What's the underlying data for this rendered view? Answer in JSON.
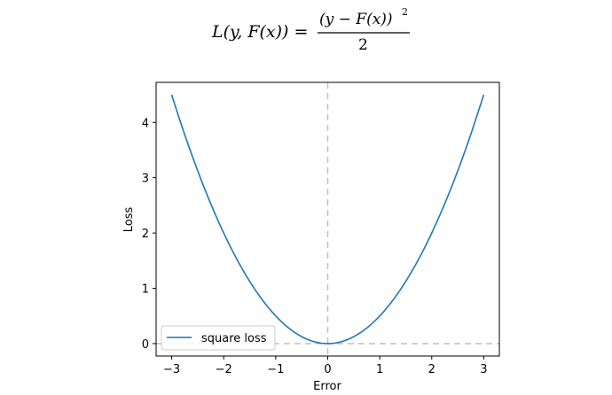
{
  "chart_data": {
    "type": "line",
    "title": {
      "lhs": "L(y, F(x)) =",
      "numerator": "(y − F(x))",
      "exponent": "2",
      "denominator": "2"
    },
    "xlabel": "Error",
    "ylabel": "Loss",
    "xlim": [
      -3.3,
      3.3
    ],
    "ylim": [
      -0.225,
      4.725
    ],
    "x_ticks": [
      -3,
      -2,
      -1,
      0,
      1,
      2,
      3
    ],
    "x_tick_labels": [
      "−3",
      "−2",
      "−1",
      "0",
      "1",
      "2",
      "3"
    ],
    "y_ticks": [
      0,
      1,
      2,
      3,
      4
    ],
    "y_tick_labels": [
      "0",
      "1",
      "2",
      "3",
      "4"
    ],
    "grid": false,
    "legend_position": "lower-left",
    "reference_lines": {
      "vertical_x": 0,
      "horizontal_y": 0,
      "style": "dashed",
      "color": "#bfbfbf"
    },
    "series": [
      {
        "name": "square loss",
        "color": "#1f77b4",
        "x": [
          -3.0,
          -2.75,
          -2.5,
          -2.25,
          -2.0,
          -1.75,
          -1.5,
          -1.25,
          -1.0,
          -0.75,
          -0.5,
          -0.25,
          0.0,
          0.25,
          0.5,
          0.75,
          1.0,
          1.25,
          1.5,
          1.75,
          2.0,
          2.25,
          2.5,
          2.75,
          3.0
        ],
        "y": [
          4.5,
          3.781,
          3.125,
          2.531,
          2.0,
          1.531,
          1.125,
          0.781,
          0.5,
          0.281,
          0.125,
          0.031,
          0.0,
          0.031,
          0.125,
          0.281,
          0.5,
          0.781,
          1.125,
          1.531,
          2.0,
          2.531,
          3.125,
          3.781,
          4.5
        ]
      }
    ]
  }
}
